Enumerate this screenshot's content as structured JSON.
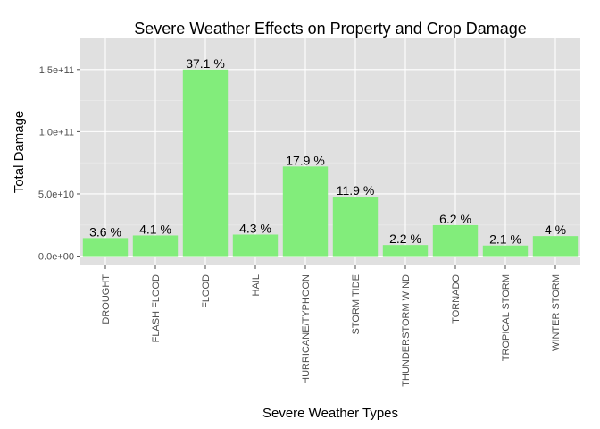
{
  "chart_data": {
    "type": "bar",
    "title": "Severe Weather Effects on Property and Crop Damage",
    "xlabel": "Severe Weather Types",
    "ylabel": "Total Damage",
    "categories": [
      "DROUGHT",
      "FLASH FLOOD",
      "FLOOD",
      "HAIL",
      "HURRICANE/TYPHOON",
      "STORM TIDE",
      "THUNDERSTORM WIND",
      "TORNADO",
      "TROPICAL STORM",
      "WINTER STORM"
    ],
    "values": [
      14500000000,
      16600000000,
      150000000000,
      17300000000,
      72000000000,
      47800000000,
      8900000000,
      24900000000,
      8500000000,
      16100000000
    ],
    "data_labels": [
      "3.6 %",
      "4.1 %",
      "37.1 %",
      "4.3 %",
      "17.9 %",
      "11.9 %",
      "2.2 %",
      "6.2 %",
      "2.1 %",
      "4 %"
    ],
    "y_ticks": [
      0,
      50000000000,
      100000000000,
      150000000000
    ],
    "y_tick_labels": [
      "0.0e+00",
      "5.0e+10",
      "1.0e+11",
      "1.5e+11"
    ],
    "ylim": [
      -7500000000,
      175000000000
    ],
    "grid": true,
    "colors": {
      "bar": "#82ed7b",
      "panel": "#e0e0e0",
      "grid_major": "#ffffff",
      "grid_minor": "#ececec",
      "tick": "#4d4d4d"
    }
  }
}
